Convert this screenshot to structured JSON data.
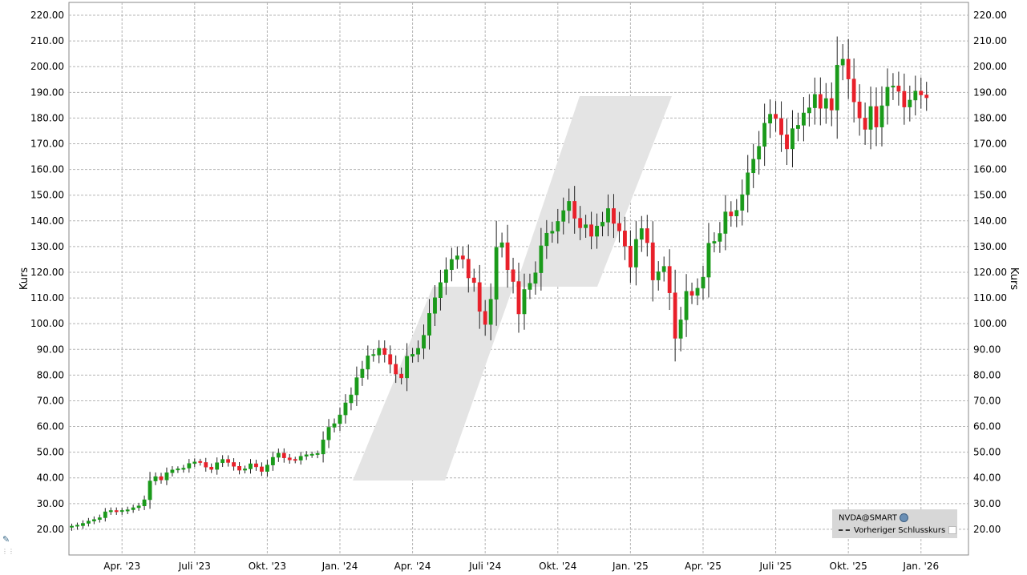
{
  "chart_data": {
    "type": "candlestick",
    "ylabel": "Kurs",
    "ylim": [
      10,
      225
    ],
    "ticks_y": [
      20,
      30,
      40,
      50,
      60,
      70,
      80,
      90,
      100,
      110,
      120,
      130,
      140,
      150,
      160,
      170,
      180,
      190,
      200,
      210,
      220
    ],
    "tick_labels_y": [
      "20.00",
      "30.00",
      "40.00",
      "50.00",
      "60.00",
      "70.00",
      "80.00",
      "90.00",
      "100.00",
      "110.00",
      "120.00",
      "130.00",
      "140.00",
      "150.00",
      "160.00",
      "170.00",
      "180.00",
      "190.00",
      "200.00",
      "210.00",
      "220.00"
    ],
    "x_ticks": [
      {
        "label": "Apr. '23",
        "week": 9
      },
      {
        "label": "Juli '23",
        "week": 22
      },
      {
        "label": "Okt. '23",
        "week": 35
      },
      {
        "label": "Jan. '24",
        "week": 48
      },
      {
        "label": "Apr. '24",
        "week": 61
      },
      {
        "label": "Juli '24",
        "week": 74
      },
      {
        "label": "Okt. '24",
        "week": 87
      },
      {
        "label": "Jan. '25",
        "week": 100
      },
      {
        "label": "Apr. '25",
        "week": 113
      },
      {
        "label": "Juli '25",
        "week": 126
      },
      {
        "label": "Okt. '25",
        "week": 139
      },
      {
        "label": "Jan. '26",
        "week": 152
      }
    ],
    "x_range": [
      -0.5,
      160.5
    ],
    "up_color": "#1a9a1a",
    "down_color": "#e8202a",
    "grid": true,
    "legend_placement": "bottom-right",
    "legend": {
      "title": "NVDA@SMART",
      "item": "Vorheriger Schlusskurs"
    },
    "closes": [
      21.0,
      21.4,
      22.3,
      23.2,
      23.8,
      24.5,
      26.8,
      27.3,
      26.8,
      27.1,
      27.6,
      28.4,
      29.1,
      31.5,
      38.8,
      40.5,
      39.2,
      42.0,
      43.1,
      43.3,
      43.8,
      45.6,
      46.2,
      46.0,
      44.2,
      43.3,
      45.9,
      47.2,
      46.0,
      44.5,
      43.0,
      43.5,
      45.5,
      44.3,
      42.5,
      45.0,
      48.0,
      49.6,
      47.8,
      47.0,
      46.9,
      48.4,
      49.0,
      49.0,
      49.3,
      54.8,
      59.7,
      61.1,
      64.5,
      69.2,
      72.3,
      79.0,
      82.3,
      87.5,
      87.8,
      90.4,
      88.0,
      84.2,
      80.4,
      78.9,
      87.3,
      88.1,
      90.4,
      95.5,
      104.0,
      110.1,
      116.0,
      121.0,
      125.0,
      126.4,
      125.1,
      117.8,
      116.0,
      104.8,
      99.7,
      109.5,
      129.7,
      131.5,
      121.0,
      116.4,
      103.8,
      113.3,
      115.7,
      119.8,
      130.3,
      135.2,
      136.0,
      139.8,
      144.0,
      147.6,
      141.0,
      137.3,
      138.5,
      134.0,
      138.0,
      139.5,
      144.8,
      139.0,
      136.1,
      130.2,
      122.0,
      132.8,
      137.0,
      131.5,
      117.0,
      120.2,
      122.3,
      112.0,
      94.3,
      101.5,
      112.6,
      111.0,
      113.8,
      118.1,
      131.3,
      132.0,
      135.1,
      143.5,
      141.9,
      144.1,
      150.2,
      158.7,
      164.0,
      169.0,
      178.0,
      181.5,
      179.8,
      173.5,
      168.0,
      175.9,
      177.2,
      182.0,
      184.0,
      189.2,
      183.8,
      187.6,
      183.1,
      200.6,
      202.9,
      195.2,
      186.3,
      180.0,
      175.6,
      184.5,
      176.5,
      184.8,
      192.0,
      192.5,
      190.4,
      184.3,
      187.0,
      190.5,
      189.0,
      187.9
    ]
  }
}
